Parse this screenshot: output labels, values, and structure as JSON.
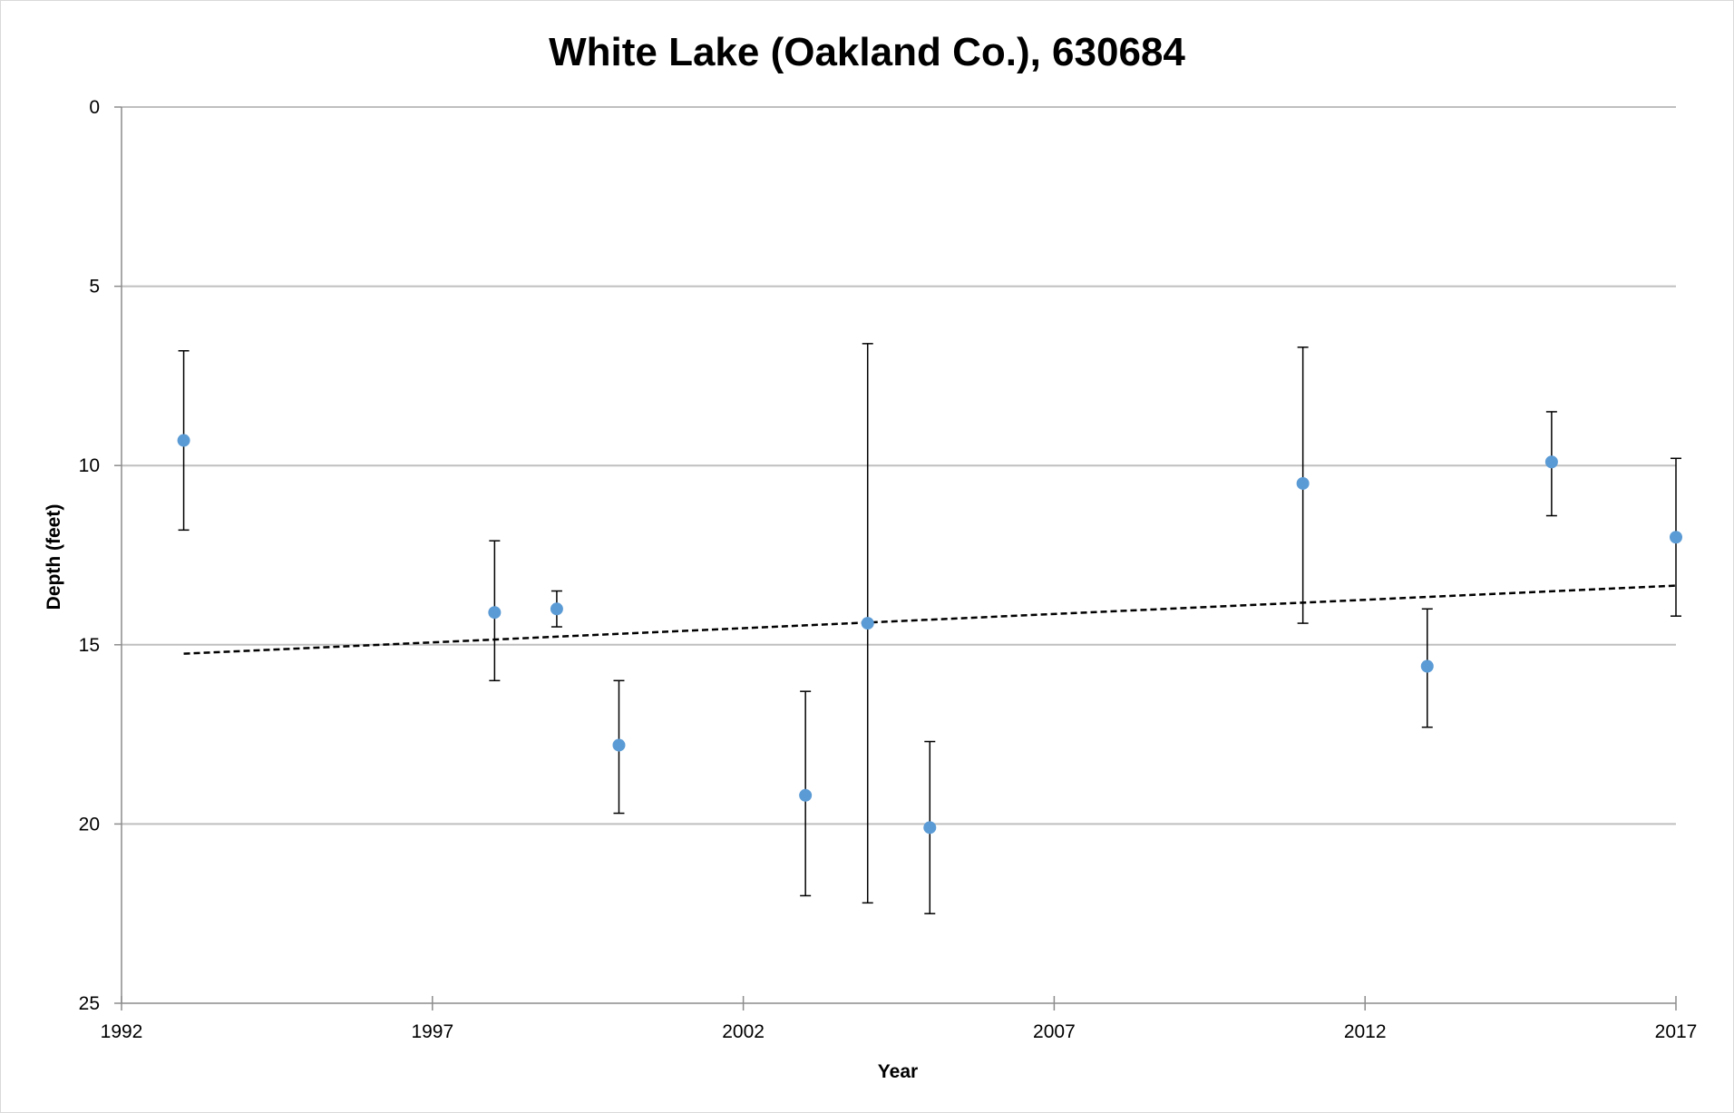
{
  "chart_data": {
    "type": "scatter",
    "title": "White Lake (Oakland Co.), 630684",
    "xlabel": "Year",
    "ylabel": "Depth (feet)",
    "xlim": [
      1992,
      2017
    ],
    "ylim": [
      0,
      25
    ],
    "y_axis_reversed": true,
    "x_ticks": [
      1992,
      1997,
      2002,
      2007,
      2012,
      2017
    ],
    "y_ticks": [
      0,
      5,
      10,
      15,
      20,
      25
    ],
    "grid": "horizontal",
    "marker_color": "#5b9bd5",
    "series": [
      {
        "x": [
          1993,
          1998,
          1999,
          2000,
          2003,
          2004,
          2005,
          2011,
          2013,
          2015,
          2017
        ],
        "y": [
          9.3,
          14.1,
          14.0,
          17.8,
          19.2,
          14.4,
          20.1,
          10.5,
          15.6,
          9.9,
          12.0
        ],
        "y_min": [
          6.8,
          12.1,
          13.5,
          16.0,
          16.3,
          6.6,
          17.7,
          6.7,
          14.0,
          8.5,
          9.8
        ],
        "y_max": [
          11.8,
          16.0,
          14.5,
          19.7,
          22.0,
          22.2,
          22.5,
          14.4,
          17.3,
          11.4,
          14.2
        ]
      }
    ],
    "trendline": {
      "style": "dashed",
      "color": "#000000",
      "x": [
        1993,
        2017
      ],
      "y": [
        15.25,
        13.35
      ]
    }
  }
}
